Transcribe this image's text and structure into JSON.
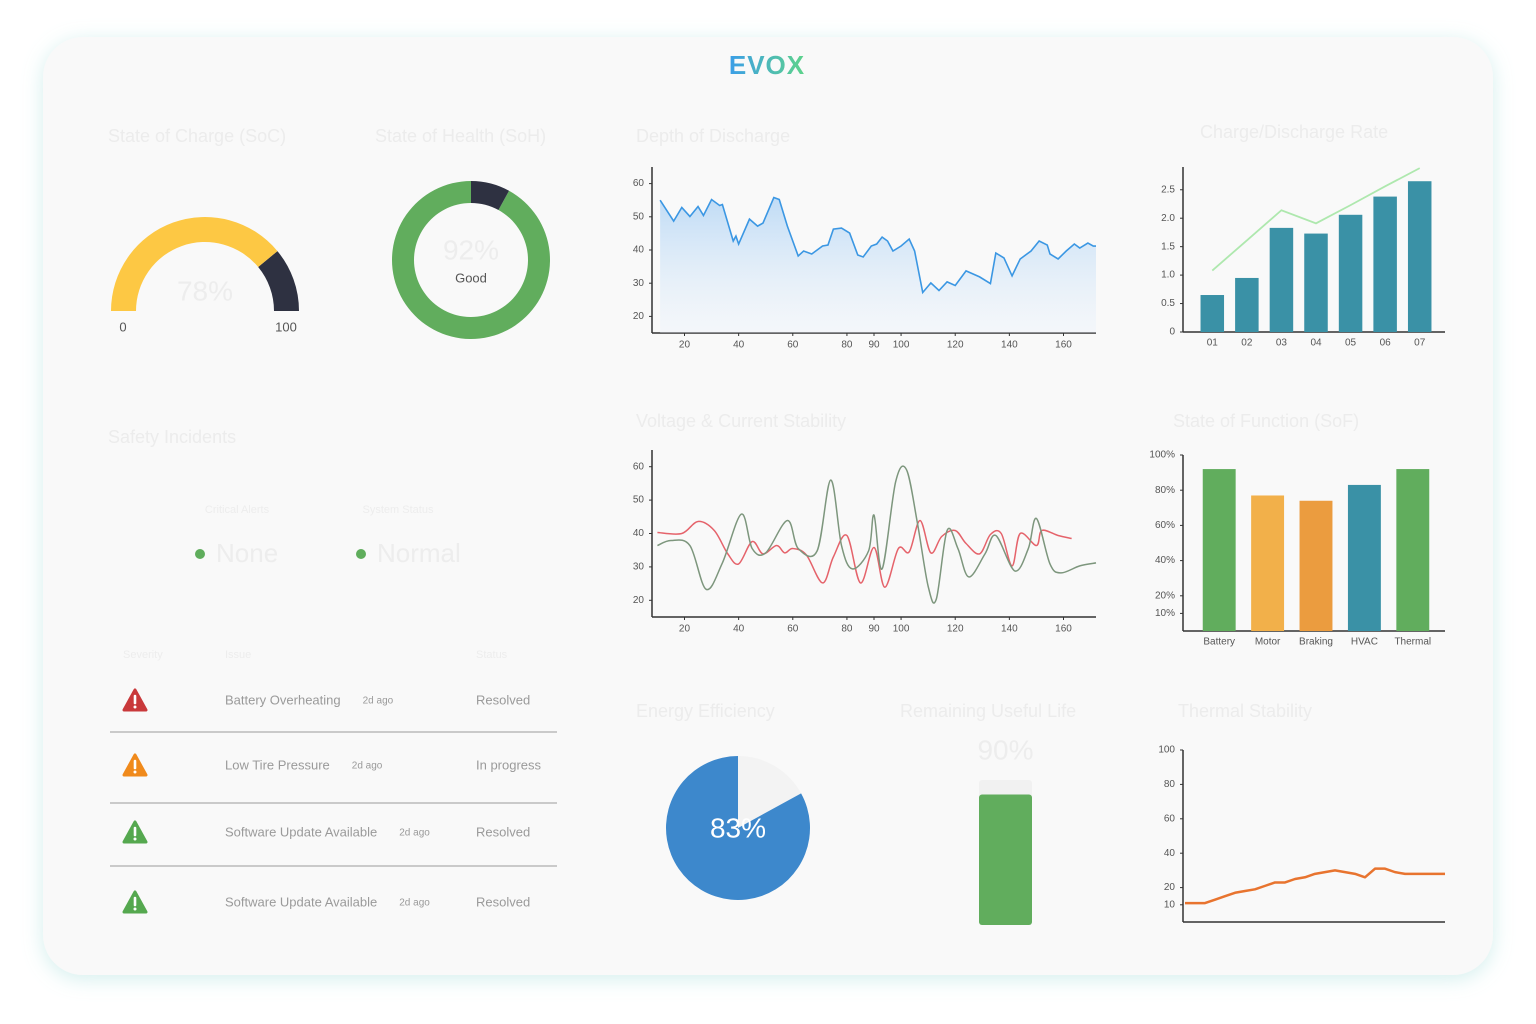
{
  "brand": "EVOX",
  "chart_data": [
    {
      "type": "gauge",
      "title": "State of Charge (SoC)",
      "value": 78,
      "value_label": "78%",
      "min": 0,
      "max": 100,
      "colors": [
        "#fdc844",
        "#2e3141"
      ]
    },
    {
      "type": "donut",
      "title": "State of Health (SoH)",
      "value": 92,
      "value_label": "92%",
      "status": "Good",
      "colors": [
        "#61ad5d",
        "#2e3141"
      ]
    },
    {
      "type": "area",
      "title": "Depth of Discharge",
      "color": "#3b97e3",
      "x": [
        11,
        16,
        19,
        22,
        25,
        27,
        30,
        33,
        34,
        38,
        39,
        40,
        44,
        47,
        49,
        53,
        55,
        58,
        62,
        64,
        67,
        71,
        73,
        75,
        78,
        81,
        84,
        86,
        89,
        91,
        93,
        95,
        97,
        100,
        103,
        105,
        108,
        111,
        114,
        117,
        120,
        124,
        129,
        133,
        135,
        138,
        141,
        144,
        148,
        151,
        154,
        155,
        158,
        161,
        164,
        166,
        169,
        171,
        172
      ],
      "values": [
        55,
        48.7,
        52.8,
        50.1,
        53.1,
        50.4,
        55.2,
        53.4,
        53.7,
        42.7,
        44.2,
        41.8,
        49.3,
        47.2,
        48.1,
        55.8,
        55.2,
        47.2,
        38.2,
        39.7,
        38.8,
        41.2,
        41.5,
        46.3,
        46.6,
        45.1,
        38.5,
        37.9,
        41.2,
        41.8,
        43.9,
        42.7,
        39.7,
        41.2,
        43.3,
        39.7,
        27.2,
        30.1,
        27.8,
        30.4,
        29.3,
        33.7,
        31.9,
        29.9,
        39.1,
        37.6,
        32.2,
        37.3,
        39.7,
        42.7,
        41.5,
        38.8,
        37.3,
        39.7,
        41.8,
        40.6,
        42.1,
        41.2,
        41.2
      ],
      "xlim": [
        8,
        172
      ],
      "xticks": [
        20,
        40,
        60,
        80,
        90,
        100,
        120,
        140,
        160
      ],
      "ylim": [
        15,
        65
      ],
      "yticks": [
        20,
        30,
        40,
        50,
        60
      ]
    },
    {
      "type": "bar",
      "title": "Charge/Discharge Rate",
      "categories": [
        "01",
        "02",
        "03",
        "04",
        "05",
        "06",
        "07"
      ],
      "series": [
        {
          "type": "bar",
          "color": "#3a91a6",
          "values": [
            0.65,
            0.95,
            1.83,
            1.73,
            2.06,
            2.38,
            2.65
          ]
        },
        {
          "type": "line",
          "color": "#aee8ae",
          "values": [
            1.08,
            1.61,
            2.14,
            1.91,
            2.23,
            2.56,
            2.88
          ]
        }
      ],
      "ylim": [
        0,
        2.9
      ],
      "yticks": [
        0,
        0.5,
        {
          "value": 1,
          "label": "1.0"
        },
        1.5,
        {
          "value": 2,
          "label": "2.0"
        },
        2.5
      ]
    },
    {
      "type": "line",
      "title": "Voltage & Current Stability",
      "series": [
        {
          "color": "#e5636b",
          "x": [
            10,
            19,
            25,
            31,
            36,
            40,
            45,
            49,
            54,
            57,
            60,
            65,
            71,
            75,
            80,
            85,
            90,
            94,
            99,
            103,
            107,
            111,
            115,
            120,
            124,
            129,
            133,
            137,
            141,
            144,
            150,
            152,
            158,
            163
          ],
          "values": [
            40.3,
            40,
            43.6,
            40.9,
            33.9,
            30.9,
            37.6,
            33.9,
            36.4,
            34.2,
            35.5,
            33.6,
            25.2,
            33,
            39.4,
            25.2,
            35.8,
            23.9,
            35.5,
            34.5,
            43.9,
            34.2,
            39.1,
            40.9,
            37,
            33.9,
            39.7,
            40,
            30.3,
            40,
            36.4,
            40.9,
            39.4,
            38.5
          ]
        },
        {
          "color": "#7d967d",
          "x": [
            10,
            15,
            22,
            28,
            34,
            41,
            45,
            50,
            58,
            62,
            69,
            74,
            78,
            82,
            88,
            90,
            93,
            98,
            102,
            106,
            110,
            113,
            117,
            121,
            125,
            131,
            135,
            142,
            147,
            150,
            155,
            159,
            166,
            172
          ],
          "values": [
            36.4,
            37.9,
            36.4,
            23.3,
            31.2,
            45.8,
            35.5,
            34.2,
            43.9,
            35.5,
            34.8,
            56,
            36.4,
            29.4,
            34.8,
            45.5,
            29.4,
            55.5,
            59.1,
            43.3,
            24.2,
            20.3,
            40.9,
            35.5,
            27,
            33.9,
            39.4,
            28.8,
            35.5,
            44.5,
            30.9,
            28.2,
            30.3,
            31.2
          ]
        }
      ],
      "xlim": [
        8,
        172
      ],
      "xticks": [
        20,
        40,
        60,
        80,
        90,
        100,
        120,
        140,
        160
      ],
      "ylim": [
        15,
        65
      ],
      "yticks": [
        20,
        30,
        40,
        50,
        60
      ]
    },
    {
      "type": "bar",
      "title": "State of Function (SoF)",
      "categories": [
        "Battery",
        "Motor",
        "Braking",
        "HVAC",
        "Thermal"
      ],
      "values": [
        92,
        77,
        74,
        83,
        92
      ],
      "colors": [
        "#61ad5d",
        "#f2b04a",
        "#eb9c3f",
        "#3a91a6",
        "#61ad5d"
      ],
      "ylim": [
        0,
        100
      ],
      "yticks": [
        {
          "value": 10,
          "label": "10%"
        },
        {
          "value": 20,
          "label": "20%"
        },
        {
          "value": 40,
          "label": "40%"
        },
        {
          "value": 60,
          "label": "60%"
        },
        {
          "value": 80,
          "label": "80%"
        },
        {
          "value": 100,
          "label": "100%"
        }
      ]
    },
    {
      "type": "pie",
      "title": "Energy Efficiency",
      "value": 83,
      "value_label": "83%",
      "colors": [
        "#3d88cc",
        "#f3f3f3"
      ]
    },
    {
      "type": "battery",
      "title": "Remaining Useful Life",
      "value": 90,
      "value_label": "90%",
      "colors": [
        "#61ad5d",
        "#f1f1f1"
      ]
    },
    {
      "type": "line",
      "title": "Thermal Stability",
      "categories": [
        null,
        null,
        null,
        null,
        null,
        null,
        null,
        null,
        null,
        null,
        null,
        null,
        null,
        null,
        null,
        null,
        null,
        null,
        null,
        null,
        null,
        null,
        null,
        null,
        null,
        null,
        null
      ],
      "series": [
        {
          "color": "#e8742f",
          "values": [
            11,
            11,
            11,
            13,
            15,
            17,
            18,
            19,
            21,
            23,
            23,
            25,
            26,
            28,
            29,
            30,
            29,
            28,
            26,
            31,
            31,
            29,
            28,
            28,
            28,
            28,
            28
          ]
        }
      ],
      "ylim": [
        0,
        100
      ],
      "yticks": [
        10,
        20,
        40,
        60,
        80,
        100
      ]
    }
  ],
  "safety": {
    "title": "Safety Incidents",
    "summary": [
      {
        "label": "Critical Alerts",
        "value": "None",
        "color": "#5fad5c"
      },
      {
        "label": "System Status",
        "value": "Normal",
        "color": "#5fad5c"
      }
    ],
    "table": {
      "columns": [
        "Severity",
        "Issue",
        "Status"
      ],
      "rows": [
        {
          "color": "#c9393b",
          "issue": "Battery Overheating",
          "time": "2d ago",
          "status": "Resolved"
        },
        {
          "color": "#f08a1c",
          "issue": "Low Tire Pressure",
          "time": "2d ago",
          "status": "In progress"
        },
        {
          "color": "#55a84f",
          "issue": "Software Update Available",
          "time": "2d ago",
          "status": "Resolved"
        },
        {
          "color": "#55a84f",
          "issue": "Software Update Available",
          "time": "2d ago",
          "status": "Resolved"
        }
      ]
    }
  }
}
